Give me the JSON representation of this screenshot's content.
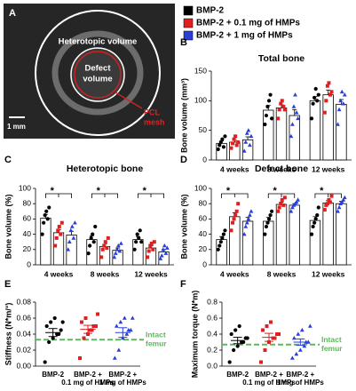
{
  "legend": [
    {
      "name": "BMP-2",
      "color": "#000000"
    },
    {
      "name": "BMP-2 + 0.1 mg of HMPs",
      "color": "#e02020"
    },
    {
      "name": "BMP-2 + 1 mg of HMPs",
      "color": "#2b3fd6"
    }
  ],
  "image_panel": {
    "label": "A",
    "heterotopic_label": "Heterotopic volume",
    "defect_label": [
      "Defect",
      "volume"
    ],
    "mesh_label": [
      "PCL",
      "mesh"
    ],
    "scale_label": "1 mm"
  },
  "chart_data": [
    {
      "type": "bar",
      "panel": "B",
      "title": "Total bone",
      "y_label": "Bone volume (mm³)",
      "categories": [
        "4 weeks",
        "8 weeks",
        "12 weeks"
      ],
      "ylim": [
        0,
        150
      ],
      "yticks": [
        0,
        50,
        100,
        150
      ],
      "series": [
        {
          "color": "#000000",
          "marker": "circle",
          "values": [
            28,
            84,
            100
          ],
          "errors": [
            4,
            8,
            7
          ],
          "points": [
            [
              18,
              25,
              30,
              35,
              22,
              40
            ],
            [
              60,
              75,
              90,
              100,
              110,
              70
            ],
            [
              70,
              95,
              105,
              120,
              100,
              110
            ]
          ]
        },
        {
          "color": "#e02020",
          "marker": "square",
          "values": [
            30,
            88,
            110
          ],
          "errors": [
            3,
            5,
            8
          ],
          "points": [
            [
              20,
              28,
              35,
              40,
              25,
              30
            ],
            [
              70,
              85,
              95,
              100,
              90,
              85
            ],
            [
              80,
              100,
              125,
              130,
              110,
              115
            ]
          ]
        },
        {
          "color": "#2b3fd6",
          "marker": "triangle",
          "values": [
            34,
            75,
            94
          ],
          "errors": [
            5,
            10,
            8
          ],
          "points": [
            [
              15,
              30,
              45,
              50,
              25,
              40
            ],
            [
              40,
              60,
              90,
              110,
              80,
              70
            ],
            [
              60,
              85,
              100,
              115,
              95,
              110
            ]
          ]
        }
      ]
    },
    {
      "type": "bar",
      "panel": "C",
      "title": "Heterotopic bone",
      "y_label": "Bone volume (%)",
      "categories": [
        "4 weeks",
        "8 weeks",
        "12 weeks"
      ],
      "ylim": [
        0,
        100
      ],
      "yticks": [
        0,
        20,
        40,
        60,
        80,
        100
      ],
      "significance_labels": [
        "*",
        "*",
        "*"
      ],
      "series": [
        {
          "color": "#000000",
          "marker": "circle",
          "values": [
            61,
            33,
            33
          ],
          "errors": [
            5,
            5,
            4
          ],
          "points": [
            [
              40,
              55,
              65,
              70,
              60,
              75
            ],
            [
              15,
              25,
              35,
              40,
              30,
              50
            ],
            [
              20,
              30,
              40,
              35,
              45,
              30
            ]
          ]
        },
        {
          "color": "#e02020",
          "marker": "square",
          "values": [
            42,
            24,
            22
          ],
          "errors": [
            4,
            3,
            3
          ],
          "points": [
            [
              25,
              35,
              45,
              50,
              40,
              55
            ],
            [
              10,
              20,
              25,
              30,
              22,
              35
            ],
            [
              10,
              18,
              25,
              28,
              20,
              30
            ]
          ]
        },
        {
          "color": "#2b3fd6",
          "marker": "triangle",
          "values": [
            39,
            19,
            17
          ],
          "errors": [
            5,
            3,
            3
          ],
          "points": [
            [
              20,
              30,
              45,
              50,
              35,
              55
            ],
            [
              10,
              15,
              20,
              25,
              18,
              28
            ],
            [
              8,
              12,
              20,
              25,
              15,
              22
            ]
          ]
        }
      ]
    },
    {
      "type": "bar",
      "panel": "D",
      "title": "Defect bone",
      "y_label": "Bone volume (%)",
      "categories": [
        "4 weeks",
        "8 weeks",
        "12 weeks"
      ],
      "ylim": [
        0,
        100
      ],
      "yticks": [
        0,
        20,
        40,
        60,
        80,
        100
      ],
      "significance_labels": [
        "*",
        "*",
        "*"
      ],
      "series": [
        {
          "color": "#000000",
          "marker": "circle",
          "values": [
            33,
            57,
            58
          ],
          "errors": [
            4,
            5,
            5
          ],
          "points": [
            [
              20,
              25,
              30,
              35,
              40,
              45
            ],
            [
              40,
              50,
              55,
              60,
              65,
              70
            ],
            [
              40,
              50,
              55,
              60,
              65,
              75
            ]
          ]
        },
        {
          "color": "#e02020",
          "marker": "square",
          "values": [
            63,
            79,
            81
          ],
          "errors": [
            5,
            3,
            3
          ],
          "points": [
            [
              45,
              55,
              60,
              65,
              70,
              80
            ],
            [
              70,
              75,
              80,
              85,
              78,
              88
            ],
            [
              72,
              78,
              80,
              85,
              82,
              90
            ]
          ]
        },
        {
          "color": "#2b3fd6",
          "marker": "triangle",
          "values": [
            57,
            78,
            80
          ],
          "errors": [
            5,
            2,
            3
          ],
          "points": [
            [
              40,
              50,
              55,
              60,
              65,
              70
            ],
            [
              70,
              75,
              78,
              80,
              82,
              85
            ],
            [
              70,
              75,
              80,
              82,
              85,
              88
            ]
          ]
        }
      ]
    },
    {
      "type": "dot",
      "panel": "E",
      "y_label": "Stiffness (N*m/°)",
      "categories": [
        [
          "BMP-2"
        ],
        [
          "BMP-2 +",
          "0.1 mg of HMPs"
        ],
        [
          "BMP-2 +",
          "1 mg of HMPs"
        ]
      ],
      "ylim": [
        0,
        0.08
      ],
      "yticks": [
        {
          "value": 0,
          "label": "0.00"
        },
        0.02,
        0.04,
        0.06,
        0.08
      ],
      "colors": [
        "#000000",
        "#e02020",
        "#2b3fd6"
      ],
      "markers": [
        "circle",
        "square",
        "triangle"
      ],
      "values": [
        0.042,
        0.046,
        0.042
      ],
      "errors": [
        0.005,
        0.005,
        0.006
      ],
      "points": [
        [
          0.005,
          0.03,
          0.035,
          0.04,
          0.045,
          0.05,
          0.055,
          0.06,
          0.04,
          0.055
        ],
        [
          0.01,
          0.035,
          0.04,
          0.045,
          0.05,
          0.055,
          0.06,
          0.045,
          0.05,
          0.065
        ],
        [
          0.01,
          0.02,
          0.035,
          0.04,
          0.045,
          0.05,
          0.055,
          0.06,
          0.045,
          0.06
        ]
      ],
      "reference": {
        "label": [
          "Intact",
          "femur"
        ],
        "value": 0.033,
        "color": "#5cb85c",
        "style": "dashed"
      }
    },
    {
      "type": "dot",
      "panel": "F",
      "y_label": "Maximum torque (N*m)",
      "categories": [
        [
          "BMP-2"
        ],
        [
          "BMP-2 +",
          "0.1 mg of HMPs"
        ],
        [
          "BMP-2 +",
          "1 mg of HMPs"
        ]
      ],
      "ylim": [
        0,
        0.8
      ],
      "yticks": [
        {
          "value": 0,
          "label": "0.0"
        },
        0.2,
        0.4,
        0.6,
        0.8
      ],
      "colors": [
        "#000000",
        "#e02020",
        "#2b3fd6"
      ],
      "markers": [
        "circle",
        "square",
        "triangle"
      ],
      "values": [
        0.32,
        0.36,
        0.3
      ],
      "errors": [
        0.04,
        0.05,
        0.04
      ],
      "points": [
        [
          0.05,
          0.2,
          0.25,
          0.3,
          0.35,
          0.4,
          0.45,
          0.5,
          0.3,
          0.35
        ],
        [
          0.05,
          0.2,
          0.3,
          0.35,
          0.4,
          0.45,
          0.5,
          0.55,
          0.35,
          0.4
        ],
        [
          0.1,
          0.15,
          0.2,
          0.25,
          0.3,
          0.35,
          0.4,
          0.45,
          0.3,
          0.5
        ]
      ],
      "reference": {
        "label": [
          "Intact",
          "femur"
        ],
        "value": 0.27,
        "color": "#5cb85c",
        "style": "dashed"
      }
    }
  ]
}
